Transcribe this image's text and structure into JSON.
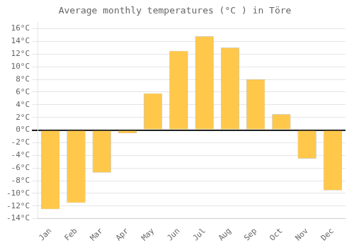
{
  "chart_data": {
    "type": "bar",
    "title": "Average monthly temperatures (°C ) in Töre",
    "categories": [
      "Jan",
      "Feb",
      "Mar",
      "Apr",
      "May",
      "Jun",
      "Jul",
      "Aug",
      "Sep",
      "Oct",
      "Nov",
      "Dec"
    ],
    "values": [
      -12.5,
      -11.5,
      -6.7,
      -0.5,
      5.8,
      12.5,
      14.8,
      13.0,
      8.0,
      2.5,
      -4.5,
      -9.5
    ],
    "color": "#FFC84A",
    "ylim": [
      -14,
      17
    ],
    "yticks": [
      {
        "value": -14,
        "label": "-14°C"
      },
      {
        "value": -12,
        "label": "-12°C"
      },
      {
        "value": -10,
        "label": "-10°C"
      },
      {
        "value": -8,
        "label": "-8°C"
      },
      {
        "value": -6,
        "label": "-6°C"
      },
      {
        "value": -4,
        "label": "-4°C"
      },
      {
        "value": -2,
        "label": "-2°C"
      },
      {
        "value": 0,
        "label": "0°C"
      },
      {
        "value": 2,
        "label": "2°C"
      },
      {
        "value": 4,
        "label": "4°C"
      },
      {
        "value": 6,
        "label": "6°C"
      },
      {
        "value": 8,
        "label": "8°C"
      },
      {
        "value": 10,
        "label": "10°C"
      },
      {
        "value": 12,
        "label": "12°C"
      },
      {
        "value": 14,
        "label": "14°C"
      },
      {
        "value": 16,
        "label": "16°C"
      }
    ],
    "grid": true
  }
}
